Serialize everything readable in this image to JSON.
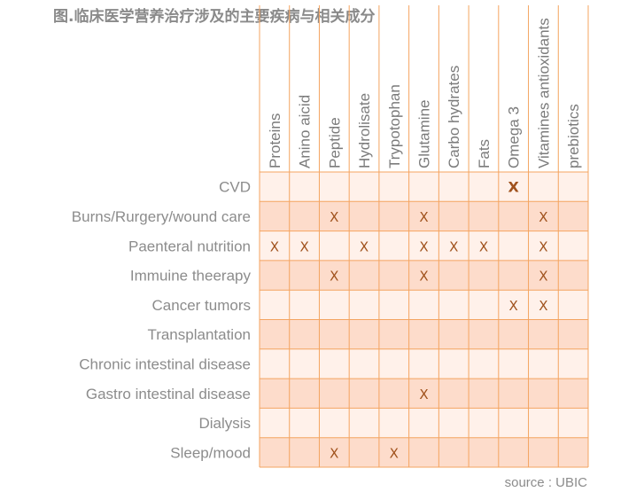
{
  "title": "图.临床医学营养治疗涉及的主要疾病与相关成分",
  "source": "source : UBIC",
  "colors": {
    "grid_line": "#f4a460",
    "cell_light": "#fff1ea",
    "cell_dark": "#fddccb",
    "mark": "#a0521d",
    "label": "#8c8c8c"
  },
  "chart_data": {
    "type": "table",
    "title": "图.临床医学营养治疗涉及的主要疾病与相关成分",
    "columns": [
      "Proteins",
      "Anino aicid",
      "Peptide",
      "Hydrolisate",
      "Trypotophan",
      "Glutamine",
      "Carbo hydrates",
      "Fats",
      "Omega 3",
      "Vitamines antioxidants",
      "prebiotics"
    ],
    "rows": [
      "CVD",
      "Burns/Rurgery/wound care",
      "Paenteral nutrition",
      "Immuine theerapy",
      "Cancer tumors",
      "Transplantation",
      "Chronic intestinal disease",
      "Gastro intestinal disease",
      "Dialysis",
      "Sleep/mood"
    ],
    "mark_symbol": "X",
    "marks": [
      [
        0,
        0,
        0,
        0,
        0,
        0,
        0,
        0,
        1,
        0,
        0
      ],
      [
        0,
        0,
        1,
        0,
        0,
        1,
        0,
        0,
        0,
        1,
        0
      ],
      [
        1,
        1,
        0,
        1,
        0,
        1,
        1,
        1,
        0,
        1,
        0
      ],
      [
        0,
        0,
        1,
        0,
        0,
        1,
        0,
        0,
        0,
        1,
        0
      ],
      [
        0,
        0,
        0,
        0,
        0,
        0,
        0,
        0,
        1,
        1,
        0
      ],
      [
        0,
        0,
        0,
        0,
        0,
        0,
        0,
        0,
        0,
        0,
        0
      ],
      [
        0,
        0,
        0,
        0,
        0,
        0,
        0,
        0,
        0,
        0,
        0
      ],
      [
        0,
        0,
        0,
        0,
        0,
        1,
        0,
        0,
        0,
        0,
        0
      ],
      [
        0,
        0,
        0,
        0,
        0,
        0,
        0,
        0,
        0,
        0,
        0
      ],
      [
        0,
        0,
        1,
        0,
        1,
        0,
        0,
        0,
        0,
        0,
        0
      ]
    ],
    "bold_mark": {
      "row": 0,
      "col": 8
    }
  }
}
